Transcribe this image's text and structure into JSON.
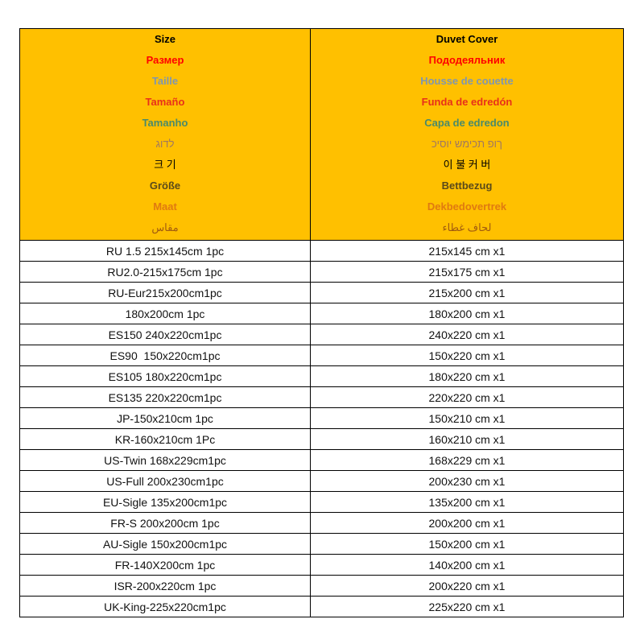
{
  "header": {
    "background": "#ffc000",
    "size_labels": [
      {
        "text": "Size",
        "color": "#000000"
      },
      {
        "text": "Размер",
        "color": "#ff0000"
      },
      {
        "text": "Taille",
        "color": "#7f96b0"
      },
      {
        "text": "Tamaño",
        "color": "#e8301a"
      },
      {
        "text": "Tamanho",
        "color": "#4a8a6a"
      },
      {
        "text": "לדוג",
        "color": "#a07860"
      },
      {
        "text": "크 기",
        "color": "#000000"
      },
      {
        "text": "Größe",
        "color": "#5a4a1a"
      },
      {
        "text": "Maat",
        "color": "#e07a10"
      },
      {
        "text": "مقاس",
        "color": "#a05a10"
      }
    ],
    "duvet_labels": [
      {
        "text": "Duvet Cover",
        "color": "#000000"
      },
      {
        "text": "Пододеяльник",
        "color": "#ff0000"
      },
      {
        "text": "Housse de couette",
        "color": "#7f96b0"
      },
      {
        "text": "Funda de edredón",
        "color": "#e8301a"
      },
      {
        "text": "Capa de edredon",
        "color": "#4a8a6a"
      },
      {
        "text": "ךופ תכימש יוסיכ",
        "color": "#a07860"
      },
      {
        "text": "이 불 커 버",
        "color": "#000000"
      },
      {
        "text": "Bettbezug",
        "color": "#5a4a1a"
      },
      {
        "text": "Dekbedovertrek",
        "color": "#e07a10"
      },
      {
        "text": "لحاف غطاء",
        "color": "#a05a10"
      }
    ]
  },
  "rows": [
    [
      "RU 1.5 215x145cm 1pc",
      "215x145 cm x1"
    ],
    [
      "RU2.0-215x175cm 1pc",
      "215x175 cm x1"
    ],
    [
      "RU-Eur215x200cm1pc",
      "215x200 cm x1"
    ],
    [
      "180x200cm 1pc",
      "180x200 cm x1"
    ],
    [
      "ES150 240x220cm1pc",
      "240x220 cm x1"
    ],
    [
      "ES90  150x220cm1pc",
      "150x220 cm x1"
    ],
    [
      "ES105 180x220cm1pc",
      "180x220 cm x1"
    ],
    [
      "ES135 220x220cm1pc",
      "220x220 cm x1"
    ],
    [
      "JP-150x210cm 1pc",
      "150x210 cm x1"
    ],
    [
      "KR-160x210cm 1Pc",
      "160x210 cm x1"
    ],
    [
      "US-Twin 168x229cm1pc",
      "168x229 cm x1"
    ],
    [
      "US-Full 200x230cm1pc",
      "200x230 cm x1"
    ],
    [
      "EU-Sigle 135x200cm1pc",
      "135x200 cm x1"
    ],
    [
      "FR-S 200x200cm 1pc",
      "200x200 cm x1"
    ],
    [
      "AU-Sigle 150x200cm1pc",
      "150x200 cm x1"
    ],
    [
      "FR-140X200cm 1pc",
      "140x200 cm x1"
    ],
    [
      "ISR-200x220cm 1pc",
      "200x220 cm x1"
    ],
    [
      "UK-King-225x220cm1pc",
      "225x220 cm x1"
    ]
  ]
}
